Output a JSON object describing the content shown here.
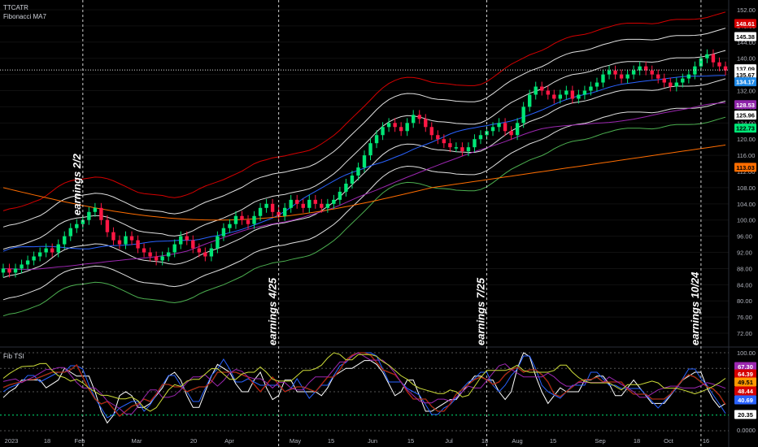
{
  "header": {
    "symbol": "TTCATR",
    "study": "Fibonacci MA7",
    "osc_label": "Fib TSI"
  },
  "colors": {
    "background": "#000000",
    "up": "#00e676",
    "down": "#ff1744",
    "grid": "#1c1c1c",
    "red_band": "#d50000",
    "white_band": "#e0e0e0",
    "blue_ma": "#2962ff",
    "purple_ma": "#9c27b0",
    "green_ma": "#4caf50",
    "orange_ma": "#ff6d00"
  },
  "chart_data": [
    {
      "type": "candlestick",
      "title": "",
      "ylim": [
        70,
        152
      ],
      "y_ticks": [
        "152.00",
        "148.00",
        "144.00",
        "140.00",
        "136.00",
        "132.00",
        "128.00",
        "124.00",
        "120.00",
        "116.00",
        "112.00",
        "108.00",
        "104.00",
        "100.00",
        "96.00",
        "92.00",
        "88.00",
        "84.00",
        "80.00",
        "76.00",
        "72.00"
      ],
      "x_ticks": [
        "2023",
        "18",
        "Feb",
        "Mar",
        "20",
        "Apr",
        "May",
        "15",
        "Jun",
        "15",
        "Jul",
        "18",
        "Aug",
        "15",
        "Sep",
        "18",
        "Oct",
        "16"
      ],
      "close_series": [
        88,
        87,
        88,
        89,
        90,
        91,
        92,
        93,
        92,
        94,
        96,
        98,
        99,
        100,
        102,
        103,
        100,
        97,
        95,
        94,
        96,
        95,
        93,
        92,
        91,
        90,
        91,
        92,
        94,
        96,
        95,
        93,
        92,
        91,
        93,
        96,
        98,
        99,
        101,
        100,
        99,
        101,
        103,
        104,
        102,
        101,
        103,
        105,
        104,
        103,
        105,
        104,
        103,
        104,
        105,
        107,
        109,
        111,
        113,
        116,
        119,
        121,
        123,
        124,
        123,
        122,
        124,
        126,
        125,
        123,
        121,
        120,
        119,
        118,
        118,
        117,
        118,
        120,
        121,
        122,
        123,
        124,
        122,
        121,
        124,
        128,
        131,
        133,
        132,
        131,
        130,
        131,
        132,
        130,
        131,
        132,
        133,
        134,
        136,
        137,
        136,
        135,
        136,
        137,
        138,
        137,
        136,
        135,
        134,
        133,
        134,
        135,
        136,
        138,
        140,
        141,
        139,
        138,
        137
      ],
      "price_tags": [
        {
          "value": "148.61",
          "color": "#d50000"
        },
        {
          "value": "145.38",
          "color": "#ffffff"
        },
        {
          "value": "137.09",
          "color": "#ffffff"
        },
        {
          "value": "135.67",
          "color": "#ffffff"
        },
        {
          "value": "134.17",
          "color": "#1e88e5"
        },
        {
          "value": "128.53",
          "color": "#8e24aa"
        },
        {
          "value": "125.96",
          "color": "#ffffff"
        },
        {
          "value": "122.73",
          "color": "#00e676"
        },
        {
          "value": "113.03",
          "color": "#ff6d00"
        }
      ],
      "earnings": [
        "earnings 2/2",
        "earnings 4/25",
        "earnings 7/25",
        "earnings 10/24"
      ],
      "series": [
        {
          "name": "",
          "color": "#d50000"
        },
        {
          "name": "",
          "color": "#e0e0e0"
        },
        {
          "name": "",
          "color": "#2962ff"
        },
        {
          "name": "",
          "color": "#9c27b0"
        },
        {
          "name": "",
          "color": "#4caf50"
        },
        {
          "name": "",
          "color": "#ff6d00"
        }
      ]
    },
    {
      "type": "line",
      "title": "Fib TSI",
      "ylim": [
        0,
        100
      ],
      "y_ticks": [
        "100.00",
        "0.0000"
      ],
      "value_tags": [
        {
          "value": "67.30",
          "color": "#9c27b0"
        },
        {
          "value": "64.39",
          "color": "#d50000"
        },
        {
          "value": "49.51",
          "color": "#ff9800"
        },
        {
          "value": "48.44",
          "color": "#d50000"
        },
        {
          "value": "40.69",
          "color": "#2962ff"
        },
        {
          "value": "20.35",
          "color": "#ffffff"
        }
      ]
    }
  ]
}
